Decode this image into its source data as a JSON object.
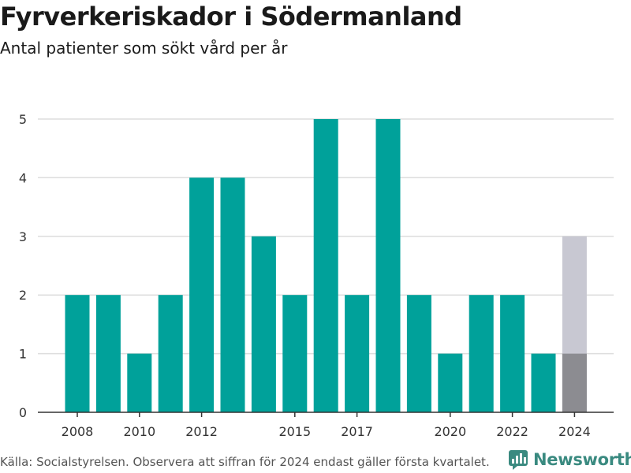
{
  "header": {
    "title": "Fyrverkeriskador i Södermanland",
    "subtitle": "Antal patienter som sökt vård per år"
  },
  "footer": {
    "source": "Källa: Socialstyrelsen. Observera att siffran för 2024 endast gäller första kvartalet.",
    "brand": "Newsworthy"
  },
  "colors": {
    "bar": "#00a19a",
    "partial_total": "#c8c8d2",
    "partial_actual": "#8c8c91",
    "grid": "#dddddd",
    "brand": "#3a8a80"
  },
  "chart_data": {
    "type": "bar",
    "x": [
      2008,
      2009,
      2010,
      2011,
      2012,
      2013,
      2014,
      2015,
      2016,
      2017,
      2018,
      2019,
      2020,
      2021,
      2022,
      2023,
      2024
    ],
    "values": [
      2,
      2,
      1,
      2,
      4,
      4,
      3,
      2,
      5,
      2,
      5,
      2,
      1,
      2,
      2,
      1,
      3
    ],
    "actual_2024_q1": 1,
    "x_tick_labels": [
      "2008",
      "2010",
      "2012",
      "2015",
      "2017",
      "2020",
      "2022",
      "2024"
    ],
    "y_ticks": [
      0,
      1,
      2,
      3,
      4,
      5
    ],
    "ylim": [
      0,
      5
    ],
    "grid": true
  }
}
